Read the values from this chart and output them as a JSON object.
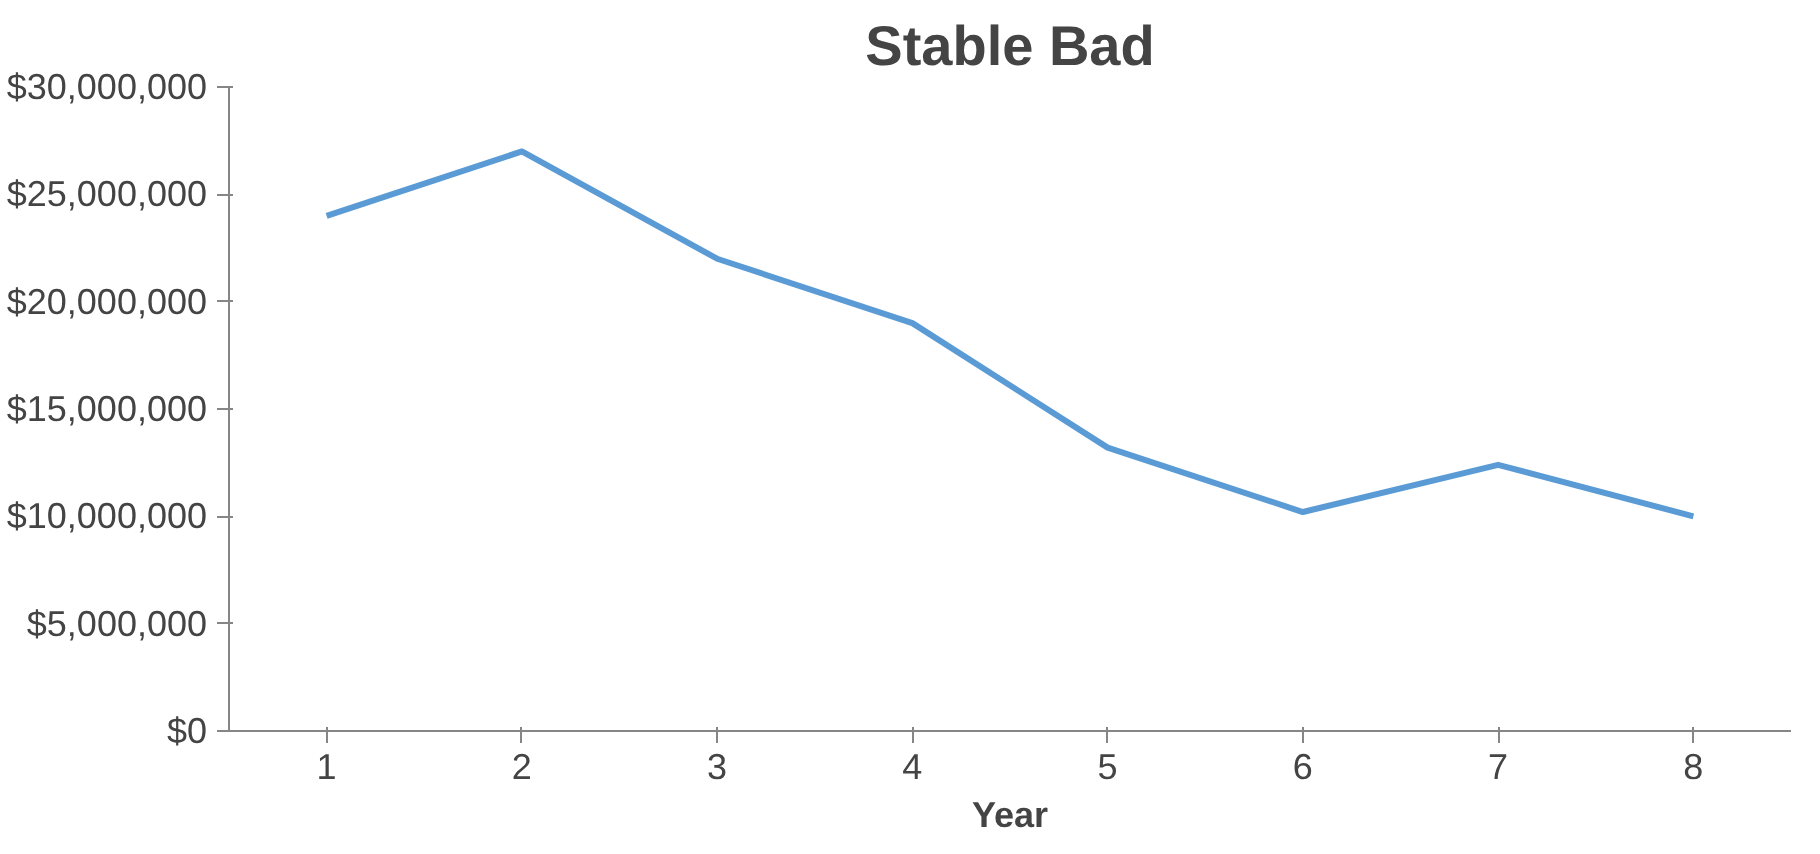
{
  "chart_data": {
    "type": "line",
    "title": "Stable Bad",
    "xlabel": "Year",
    "categories": [
      "1",
      "2",
      "3",
      "4",
      "5",
      "6",
      "7",
      "8"
    ],
    "series": [
      {
        "color": "#5b9bd5",
        "values": [
          24000000,
          27000000,
          22000000,
          19000000,
          13200000,
          10200000,
          12400000,
          10000000
        ]
      }
    ],
    "ylim": [
      0,
      30000000
    ],
    "yticks": [
      {
        "value": 0,
        "label": "$0"
      },
      {
        "value": 5000000,
        "label": "$5,000,000"
      },
      {
        "value": 10000000,
        "label": "$10,000,000"
      },
      {
        "value": 15000000,
        "label": "$15,000,000"
      },
      {
        "value": 20000000,
        "label": "$20,000,000"
      },
      {
        "value": 25000000,
        "label": "$25,000,000"
      },
      {
        "value": 30000000,
        "label": "$30,000,000"
      }
    ],
    "grid": false,
    "marker": "none"
  }
}
